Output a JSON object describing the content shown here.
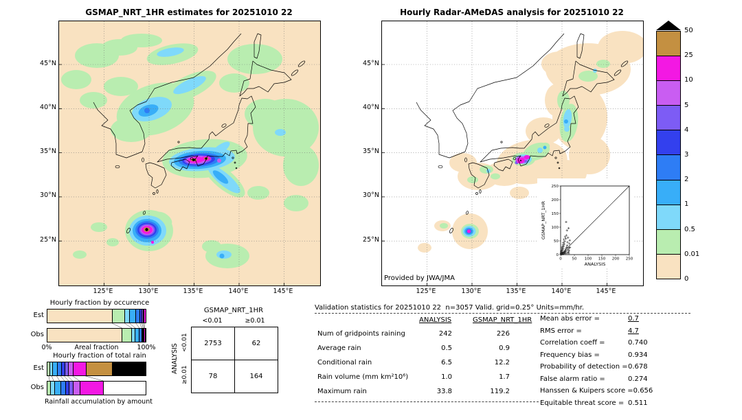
{
  "maps": {
    "left_title": "GSMAP_NRT_1HR estimates for 20251010 22",
    "right_title": "Hourly Radar-AMeDAS analysis for 20251010 22",
    "credit": "Provided by JWA/JMA",
    "lat_ticks": [
      "45°N",
      "40°N",
      "35°N",
      "30°N",
      "25°N"
    ],
    "lon_ticks": [
      "125°E",
      "130°E",
      "135°E",
      "140°E",
      "145°E"
    ]
  },
  "legend": {
    "boundary_labels": [
      "50",
      "25",
      "10",
      "5",
      "4",
      "3",
      "2",
      "1",
      "0.5",
      "0.01",
      "0"
    ],
    "segment_colors_top_to_bottom": [
      "#c49041",
      "#f318e3",
      "#c95df2",
      "#7d5cf5",
      "#3340ee",
      "#2e7df5",
      "#38aef8",
      "#7fd9fa",
      "#b9edb0",
      "#f9e2c1"
    ],
    "overflow_color": "#000000"
  },
  "chart_data": [
    {
      "id": "occurrence",
      "type": "bar",
      "subtype": "stacked-horizontal-fraction",
      "title": "Hourly fraction by occurence",
      "xlabel": "Areal fraction",
      "x_min_label": "0%",
      "x_max_label": "100%",
      "categories": [
        "Est",
        "Obs"
      ],
      "series": [
        {
          "name": "Est",
          "segments": [
            [
              "#f9e2c1",
              0.655
            ],
            [
              "#b9edb0",
              0.125
            ],
            [
              "#7fd9fa",
              0.05
            ],
            [
              "#38aef8",
              0.065
            ],
            [
              "#2e7df5",
              0.04
            ],
            [
              "#3340ee",
              0.02
            ],
            [
              "#7d5cf5",
              0.015
            ],
            [
              "#c95df2",
              0.01
            ],
            [
              "#f318e3",
              0.02
            ]
          ]
        },
        {
          "name": "Obs",
          "segments": [
            [
              "#f9e2c1",
              0.755
            ],
            [
              "#b9edb0",
              0.1
            ],
            [
              "#7fd9fa",
              0.035
            ],
            [
              "#38aef8",
              0.04
            ],
            [
              "#2e7df5",
              0.025
            ],
            [
              "#3340ee",
              0.012
            ],
            [
              "#7d5cf5",
              0.008
            ],
            [
              "#c95df2",
              0.006
            ],
            [
              "#f318e3",
              0.012
            ],
            [
              "#c49041",
              0.007
            ]
          ]
        }
      ]
    },
    {
      "id": "totalrain",
      "type": "bar",
      "subtype": "stacked-horizontal-fraction",
      "title": "Hourly fraction of total rain",
      "xlabel": "Rainfall accumulation by amount",
      "categories": [
        "Est",
        "Obs"
      ],
      "series": [
        {
          "name": "Est",
          "segments": [
            [
              "#b9edb0",
              0.02
            ],
            [
              "#7fd9fa",
              0.03
            ],
            [
              "#38aef8",
              0.05
            ],
            [
              "#2e7df5",
              0.04
            ],
            [
              "#3340ee",
              0.035
            ],
            [
              "#7d5cf5",
              0.035
            ],
            [
              "#c95df2",
              0.05
            ],
            [
              "#f318e3",
              0.13
            ],
            [
              "#c49041",
              0.27
            ],
            [
              "#000000",
              0.34
            ]
          ]
        },
        {
          "name": "Obs",
          "segments": [
            [
              "#b9edb0",
              0.03
            ],
            [
              "#7fd9fa",
              0.04
            ],
            [
              "#38aef8",
              0.06
            ],
            [
              "#2e7df5",
              0.05
            ],
            [
              "#3340ee",
              0.04
            ],
            [
              "#7d5cf5",
              0.04
            ],
            [
              "#c95df2",
              0.07
            ],
            [
              "#f318e3",
              0.24
            ],
            [
              "#ffffff",
              0.43
            ]
          ]
        }
      ]
    },
    {
      "id": "inset_scatter",
      "type": "scatter",
      "xlabel": "ANALYSIS",
      "ylabel": "GSMAP_NRT_1HR",
      "xlim": [
        0,
        250
      ],
      "ylim": [
        0,
        250
      ],
      "ticks": [
        0,
        50,
        100,
        150,
        200,
        250
      ],
      "diagonal": true,
      "points": [
        [
          1,
          1
        ],
        [
          2,
          3
        ],
        [
          3,
          1
        ],
        [
          2,
          7
        ],
        [
          4,
          4
        ],
        [
          5,
          2
        ],
        [
          6,
          9
        ],
        [
          3,
          14
        ],
        [
          8,
          5
        ],
        [
          7,
          16
        ],
        [
          10,
          7
        ],
        [
          9,
          22
        ],
        [
          12,
          10
        ],
        [
          11,
          30
        ],
        [
          14,
          6
        ],
        [
          13,
          38
        ],
        [
          16,
          12
        ],
        [
          15,
          48
        ],
        [
          18,
          20
        ],
        [
          17,
          9
        ],
        [
          20,
          14
        ],
        [
          19,
          58
        ],
        [
          22,
          26
        ],
        [
          21,
          70
        ],
        [
          24,
          33
        ],
        [
          23,
          88
        ],
        [
          26,
          18
        ],
        [
          25,
          45
        ],
        [
          28,
          10
        ],
        [
          27,
          62
        ],
        [
          30,
          24
        ],
        [
          29,
          96
        ],
        [
          32,
          40
        ],
        [
          31,
          15
        ],
        [
          33,
          52
        ],
        [
          20,
          119
        ],
        [
          34,
          26
        ],
        [
          6,
          28
        ],
        [
          4,
          20
        ],
        [
          2,
          12
        ],
        [
          8,
          35
        ],
        [
          10,
          44
        ],
        [
          12,
          55
        ],
        [
          5,
          25
        ],
        [
          16,
          65
        ],
        [
          1,
          5
        ],
        [
          3,
          8
        ],
        [
          7,
          3
        ],
        [
          9,
          2
        ],
        [
          13,
          5
        ],
        [
          18,
          4
        ],
        [
          25,
          6
        ],
        [
          30,
          5
        ]
      ]
    },
    {
      "id": "contingency",
      "type": "table",
      "col_axis": "GSMAP_NRT_1HR",
      "row_axis": "ANALYSIS",
      "col_labels": [
        "<0.01",
        "≥0.01"
      ],
      "row_labels": [
        "<0.01",
        "≥0.01"
      ],
      "values": [
        [
          "2753",
          "62"
        ],
        [
          "78",
          "164"
        ]
      ]
    },
    {
      "id": "validation",
      "type": "table",
      "title": "Validation statistics for 20251010 22  n=3057 Valid. grid=0.25° Units=mm/hr.",
      "col_headers": [
        "ANALYSIS",
        "GSMAP_NRT_1HR"
      ],
      "rows": [
        [
          "Num of gridpoints raining",
          "242",
          "226"
        ],
        [
          "Average rain",
          "0.5",
          "0.9"
        ],
        [
          "Conditional rain",
          "6.5",
          "12.2"
        ],
        [
          "Rain volume (mm km²10⁶)",
          "1.0",
          "1.7"
        ],
        [
          "Maximum rain",
          "33.8",
          "119.2"
        ]
      ],
      "stats": [
        [
          "Mean abs error =",
          "0.7"
        ],
        [
          "RMS error =",
          "4.7"
        ],
        [
          "Correlation coeff =",
          "0.740"
        ],
        [
          "Frequency bias =",
          "0.934"
        ],
        [
          "Probability of detection =",
          "0.678"
        ],
        [
          "False alarm ratio =",
          "0.274"
        ],
        [
          "Hanssen & Kuipers score =",
          "0.656"
        ],
        [
          "Equitable threat score =",
          "0.511"
        ]
      ]
    }
  ]
}
